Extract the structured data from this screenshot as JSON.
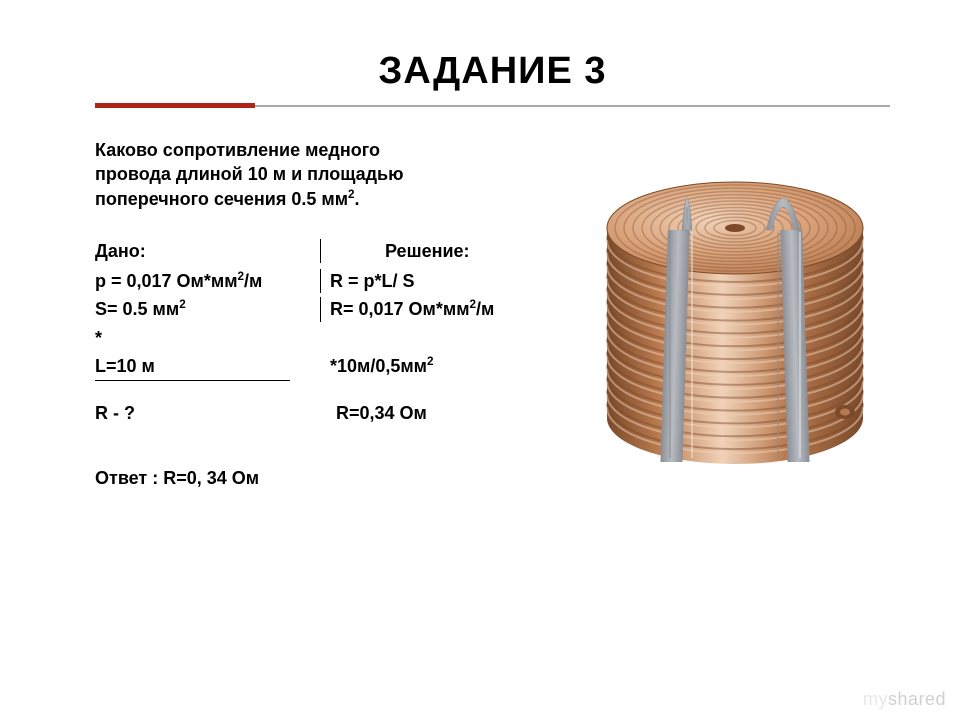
{
  "title": "ЗАДАНИЕ 3",
  "prompt_l1": "Каково сопротивление медного",
  "prompt_l2": "провода длиной 10 м и площадью",
  "prompt_l3": "поперечного сечения 0.5 мм",
  "prompt_l3_sup": "2",
  "prompt_l3_end": ".",
  "given_header": "Дано:",
  "solution_header": "Решение:",
  "g_rho_a": "р = 0,017 Ом*мм",
  "g_rho_sup": "2",
  "g_rho_b": "/м",
  "s_formula": "R = p*L/ S",
  "g_s_a": "S= 0.5 мм",
  "g_s_sup": "2",
  "s_r1_a": "R= 0,017 Ом*мм",
  "s_r1_sup": "2",
  "s_r1_b": "/м",
  "g_star": "*",
  "g_l": "L=10 м",
  "s_r2_a": "*10м/0,5мм",
  "s_r2_sup": "2",
  "g_q": "R - ?",
  "s_ans": "R=0,34 Ом",
  "answer": "Ответ : R=0, 34 Ом",
  "watermark_my": "my",
  "watermark_shared": "shared",
  "coil": {
    "body_light": "#d9a27a",
    "body_mid": "#b97a4f",
    "body_dark": "#7a4a2a",
    "body_hi": "#f1d2b8",
    "clip": "#b8bcc2",
    "clip_dark": "#8a8e95",
    "bg": "#ffffff"
  }
}
